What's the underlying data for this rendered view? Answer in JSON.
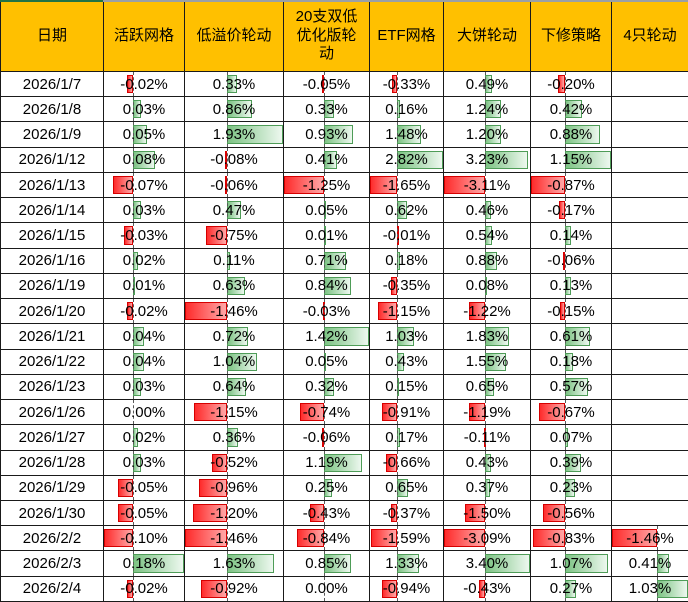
{
  "colors": {
    "header_bg": "#FFC000",
    "grid_line": "#1a1a1a",
    "positive_bar_border": "#4E9C57",
    "positive_bar_start": "#7CC383",
    "positive_bar_end": "#EDF8EF",
    "negative_bar_border": "#D60000",
    "negative_bar_start": "#FF2B2B",
    "negative_bar_end": "#FFA8A8",
    "axis_dash": "#595959",
    "top_accent_green": "#217346",
    "top_accent_gray": "#9AA0A6"
  },
  "chart_data": {
    "type": "table",
    "unit": "%",
    "value_format": "0.00%",
    "conditional_formatting": "excel-style data bars per column: green bar right of dashed axis for positive, red bar left of axis for negative, scaled to column min/max",
    "columns": [
      "日期",
      "活跃网格",
      "低溢价轮动",
      "20支双低优化版轮动",
      "ETF网格",
      "大饼轮动",
      "下修策略",
      "4只轮动"
    ],
    "categories": [
      "2026/1/7",
      "2026/1/8",
      "2026/1/9",
      "2026/1/12",
      "2026/1/13",
      "2026/1/14",
      "2026/1/15",
      "2026/1/16",
      "2026/1/19",
      "2026/1/20",
      "2026/1/21",
      "2026/1/22",
      "2026/1/23",
      "2026/1/26",
      "2026/1/27",
      "2026/1/28",
      "2026/1/29",
      "2026/1/30",
      "2026/2/2",
      "2026/2/3",
      "2026/2/4"
    ],
    "series": [
      {
        "name": "活跃网格",
        "values": [
          -0.02,
          0.03,
          0.05,
          0.08,
          -0.07,
          0.03,
          -0.03,
          0.02,
          0.01,
          -0.02,
          0.04,
          0.04,
          0.03,
          0.0,
          0.02,
          0.03,
          -0.05,
          -0.05,
          -0.1,
          0.18,
          -0.02
        ]
      },
      {
        "name": "低溢价轮动",
        "values": [
          0.33,
          0.86,
          1.93,
          -0.08,
          -0.06,
          0.47,
          -0.75,
          0.11,
          0.63,
          -1.46,
          0.72,
          1.04,
          0.64,
          -1.15,
          0.36,
          -0.52,
          -0.96,
          -1.2,
          -1.46,
          1.63,
          -0.92
        ]
      },
      {
        "name": "20支双低优化版轮动",
        "values": [
          -0.05,
          0.33,
          0.93,
          0.41,
          -1.25,
          0.05,
          0.01,
          0.71,
          0.84,
          -0.03,
          1.42,
          0.05,
          0.32,
          -0.74,
          -0.06,
          1.19,
          0.25,
          -0.43,
          -0.84,
          0.85,
          0.0
        ]
      },
      {
        "name": "ETF网格",
        "values": [
          -0.33,
          0.16,
          1.48,
          2.82,
          -1.65,
          0.62,
          -0.01,
          0.18,
          -0.35,
          -1.15,
          1.03,
          0.43,
          0.15,
          -0.91,
          0.17,
          -0.66,
          0.65,
          -0.37,
          -1.59,
          1.33,
          -0.94
        ]
      },
      {
        "name": "大饼轮动",
        "values": [
          0.49,
          1.24,
          1.2,
          3.23,
          -3.11,
          0.46,
          0.54,
          0.88,
          0.08,
          -1.22,
          1.83,
          1.55,
          0.65,
          -1.19,
          -0.11,
          0.43,
          0.37,
          -1.5,
          -3.09,
          3.4,
          -0.43
        ]
      },
      {
        "name": "下修策略",
        "values": [
          -0.2,
          0.42,
          0.88,
          1.15,
          -0.87,
          -0.17,
          0.14,
          -0.06,
          0.13,
          -0.15,
          0.61,
          0.18,
          0.57,
          -0.67,
          0.07,
          0.39,
          0.23,
          -0.56,
          -0.83,
          1.07,
          0.27
        ]
      },
      {
        "name": "4只轮动",
        "values": [
          null,
          null,
          null,
          null,
          null,
          null,
          null,
          null,
          null,
          null,
          null,
          null,
          null,
          null,
          null,
          null,
          null,
          null,
          -1.46,
          0.41,
          1.03
        ]
      }
    ]
  }
}
